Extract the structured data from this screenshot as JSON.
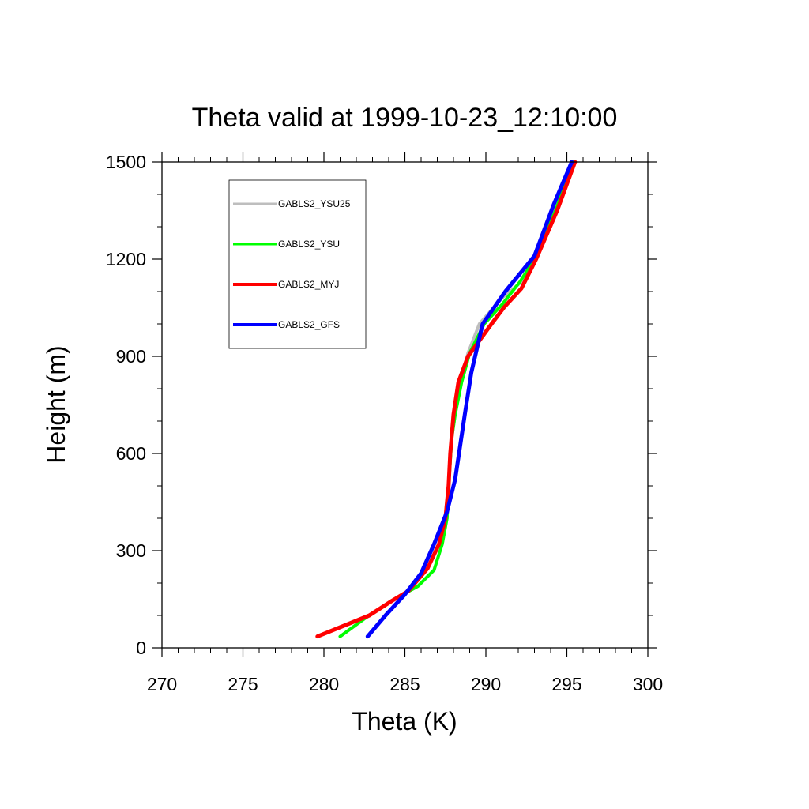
{
  "chart_data": {
    "type": "line",
    "title": "Theta valid at 1999-10-23_12:10:00",
    "xlabel": "Theta (K)",
    "ylabel": "Height (m)",
    "xlim": [
      270,
      300
    ],
    "ylim": [
      0,
      1500
    ],
    "xticks": [
      "270",
      "275",
      "280",
      "285",
      "290",
      "295",
      "300"
    ],
    "yticks": [
      "0",
      "300",
      "600",
      "900",
      "1200",
      "1500"
    ],
    "grid": false,
    "legend_position": "top-left",
    "series": [
      {
        "name": "GABLS2_YSU25",
        "color": "#bebebe",
        "points": [
          [
            281.0,
            35
          ],
          [
            282.5,
            90
          ],
          [
            284.5,
            155
          ],
          [
            285.8,
            190
          ],
          [
            286.8,
            240
          ],
          [
            287.3,
            320
          ],
          [
            287.6,
            400
          ],
          [
            287.7,
            500
          ],
          [
            287.9,
            650
          ],
          [
            288.1,
            720
          ],
          [
            288.4,
            820
          ],
          [
            288.9,
            910
          ],
          [
            289.6,
            1000
          ],
          [
            291.0,
            1080
          ],
          [
            292.2,
            1130
          ],
          [
            293.0,
            1200
          ],
          [
            294.2,
            1350
          ],
          [
            295.3,
            1500
          ]
        ]
      },
      {
        "name": "GABLS2_YSU",
        "color": "#00ff00",
        "points": [
          [
            281.0,
            35
          ],
          [
            282.5,
            90
          ],
          [
            284.5,
            155
          ],
          [
            285.8,
            190
          ],
          [
            286.8,
            240
          ],
          [
            287.3,
            320
          ],
          [
            287.6,
            400
          ],
          [
            287.7,
            500
          ],
          [
            287.9,
            650
          ],
          [
            288.1,
            720
          ],
          [
            288.5,
            820
          ],
          [
            289.0,
            910
          ],
          [
            289.9,
            1000
          ],
          [
            291.0,
            1060
          ],
          [
            292.1,
            1130
          ],
          [
            293.0,
            1200
          ],
          [
            294.3,
            1350
          ],
          [
            295.4,
            1500
          ]
        ]
      },
      {
        "name": "GABLS2_MYJ",
        "color": "#ff0000",
        "points": [
          [
            279.6,
            35
          ],
          [
            282.8,
            100
          ],
          [
            284.2,
            145
          ],
          [
            285.2,
            175
          ],
          [
            286.4,
            245
          ],
          [
            287.1,
            320
          ],
          [
            287.5,
            400
          ],
          [
            287.7,
            500
          ],
          [
            287.8,
            600
          ],
          [
            288.0,
            720
          ],
          [
            288.3,
            820
          ],
          [
            288.9,
            900
          ],
          [
            290.2,
            990
          ],
          [
            291.1,
            1050
          ],
          [
            292.2,
            1110
          ],
          [
            293.1,
            1200
          ],
          [
            294.4,
            1350
          ],
          [
            295.5,
            1500
          ]
        ]
      },
      {
        "name": "GABLS2_GFS",
        "color": "#0000ff",
        "points": [
          [
            282.7,
            35
          ],
          [
            283.8,
            100
          ],
          [
            285.0,
            165
          ],
          [
            286.0,
            230
          ],
          [
            286.8,
            320
          ],
          [
            287.6,
            420
          ],
          [
            288.1,
            520
          ],
          [
            288.4,
            620
          ],
          [
            288.7,
            720
          ],
          [
            289.1,
            850
          ],
          [
            289.8,
            1000
          ],
          [
            291.2,
            1100
          ],
          [
            293.0,
            1210
          ],
          [
            294.2,
            1370
          ],
          [
            295.3,
            1500
          ]
        ]
      }
    ]
  }
}
